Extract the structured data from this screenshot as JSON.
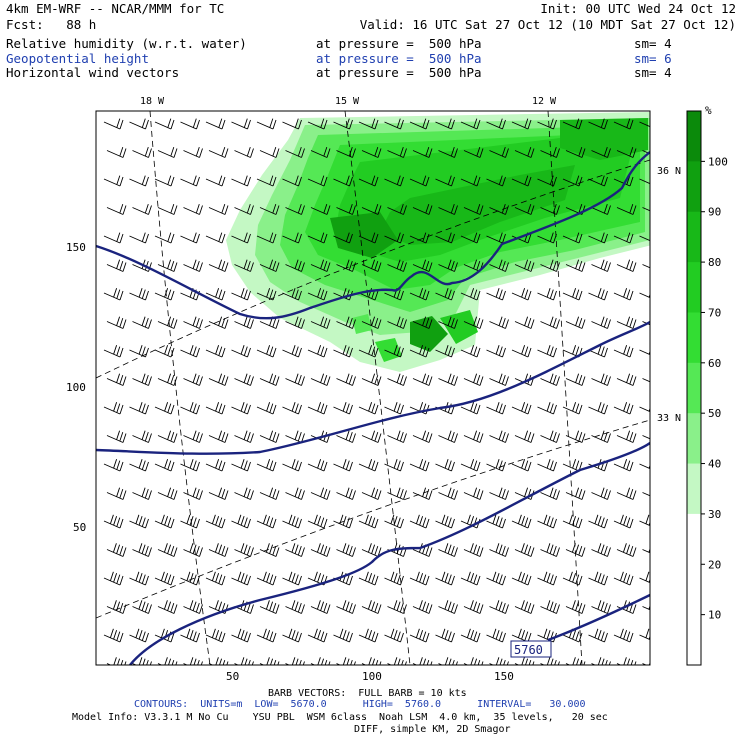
{
  "header": {
    "model_line": "4km EM-WRF -- NCAR/MMM for TC",
    "init": "Init: 00 UTC Wed 24 Oct 12",
    "fcst": "Fcst:   88 h",
    "valid": "Valid: 16 UTC Sat 27 Oct 12 (10 MDT Sat 27 Oct 12)"
  },
  "fields": [
    {
      "name": "Relative humidity (w.r.t. water)",
      "pressure": "at pressure =  500 hPa",
      "sm": "sm= 4",
      "color": "#000000"
    },
    {
      "name": "Geopotential height",
      "pressure": "at pressure =  500 hPa",
      "sm": "sm= 6",
      "color": "#1f3fb0"
    },
    {
      "name": "Horizontal wind vectors",
      "pressure": "at pressure =  500 hPa",
      "sm": "sm= 4",
      "color": "#000000"
    }
  ],
  "map": {
    "lon_labels": [
      "18 W",
      "15 W",
      "12 W"
    ],
    "lat_labels": [
      "36 N",
      "33 N"
    ],
    "x_ticks": [
      "50",
      "100",
      "150"
    ],
    "y_ticks": [
      "150",
      "100",
      "50"
    ],
    "contour_label": "5760",
    "contour_color": "#1a237e"
  },
  "colorbar": {
    "unit": "%",
    "ticks": [
      "100",
      "90",
      "80",
      "70",
      "60",
      "50",
      "40",
      "30",
      "20",
      "10"
    ],
    "colors": [
      "#0b8a0b",
      "#10a010",
      "#18b818",
      "#22cc22",
      "#33dd33",
      "#55e855",
      "#8af08a",
      "#c4f8c4",
      "#ffffff",
      "#ffffff",
      "#ffffff"
    ]
  },
  "footer": {
    "barb": "BARB VECTORS:  FULL BARB = 10 kts",
    "contours": "CONTOURS:  UNITS=m  LOW=  5670.0      HIGH=  5760.0      INTERVAL=   30.000",
    "model_info": "Model Info: V3.3.1 M No Cu    YSU PBL  WSM 6class  Noah LSM  4.0 km,  35 levels,   20 sec",
    "diff": "DIFF, simple KM, 2D Smagor"
  }
}
